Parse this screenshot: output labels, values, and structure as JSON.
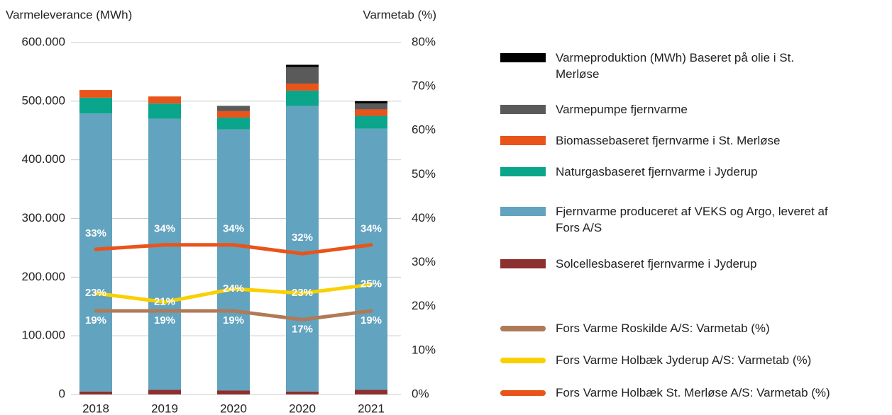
{
  "chart_data": {
    "type": "bar",
    "y_label": "Varmeleverance (MWh)",
    "y2_label": "Varmetab (%)",
    "categories": [
      "2018",
      "2019",
      "2020",
      "2020",
      "2021"
    ],
    "ylim": [
      0,
      600000
    ],
    "yticks": [
      {
        "value": 0,
        "label": "0"
      },
      {
        "value": 100000,
        "label": "100.000"
      },
      {
        "value": 200000,
        "label": "200.000"
      },
      {
        "value": 300000,
        "label": "300.000"
      },
      {
        "value": 400000,
        "label": "400.000"
      },
      {
        "value": 500000,
        "label": "500.000"
      },
      {
        "value": 600000,
        "label": "600.000"
      }
    ],
    "y2lim": [
      0,
      80
    ],
    "y2ticks": [
      {
        "value": 0,
        "label": "0%"
      },
      {
        "value": 10,
        "label": "10%"
      },
      {
        "value": 20,
        "label": "20%"
      },
      {
        "value": 30,
        "label": "30%"
      },
      {
        "value": 40,
        "label": "40%"
      },
      {
        "value": 50,
        "label": "50%"
      },
      {
        "value": 60,
        "label": "60%"
      },
      {
        "value": 70,
        "label": "70%"
      },
      {
        "value": 80,
        "label": "80%"
      }
    ],
    "grid": true,
    "series": [
      {
        "name": "Varmeproduktion (MWh) Baseret på olie i St. Merløse",
        "color": "#000000",
        "values": [
          0,
          0,
          0,
          4000,
          4000
        ]
      },
      {
        "name": "Varmepumpe fjernvarme",
        "color": "#5a5a5a",
        "values": [
          0,
          0,
          9000,
          28000,
          10000
        ]
      },
      {
        "name": "Biomassebaseret fjernvarme i St. Merløse",
        "color": "#e8541a",
        "values": [
          13000,
          12000,
          11000,
          12000,
          11000
        ]
      },
      {
        "name": "Naturgasbaseret fjernvarme i Jyderup",
        "color": "#0aa58a",
        "values": [
          27000,
          26000,
          20000,
          26000,
          22000
        ]
      },
      {
        "name": "Fjernvarme produceret af VEKS og Argo, leveret af Fors A/S",
        "color": "#62a3bf",
        "values": [
          474000,
          462000,
          445000,
          487000,
          445000
        ]
      },
      {
        "name": "Solcellesbaseret fjernvarme i Jyderup",
        "color": "#8b2f2f",
        "values": [
          5000,
          8000,
          7000,
          5000,
          8000
        ]
      },
      {
        "name": "Fors Varme Roskilde A/S: Varmetab (%)",
        "color": "#b07a58",
        "axis": "y2",
        "values": [
          19,
          19,
          19,
          17,
          19
        ],
        "value_labels": [
          "19%",
          "19%",
          "19%",
          "17%",
          "19%"
        ]
      },
      {
        "name": "Fors Varme Holbæk Jyderup A/S: Varmetab (%)",
        "color": "#f9d000",
        "axis": "y2",
        "values": [
          23,
          21,
          24,
          23,
          25
        ],
        "value_labels": [
          "23%",
          "21%",
          "24%",
          "23%",
          "25%"
        ]
      },
      {
        "name": "Fors Varme Holbæk St. Merløse A/S: Varmetab (%)",
        "color": "#e8541a",
        "axis": "y2",
        "values": [
          33,
          34,
          34,
          32,
          34
        ],
        "value_labels": [
          "33%",
          "34%",
          "34%",
          "32%",
          "34%"
        ]
      }
    ]
  }
}
